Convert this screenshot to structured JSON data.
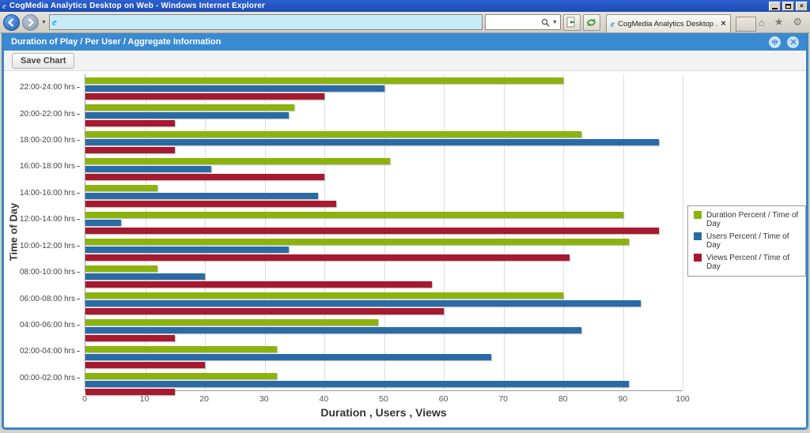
{
  "window": {
    "title": "CogMedia Analytics Desktop on Web - Windows Internet Explorer",
    "tab_title": "CogMedia Analytics Desktop ...",
    "tab_close": "×",
    "address_text": "",
    "search_placeholder": ""
  },
  "app": {
    "header_title": "Duration of Play / Per User / Aggregate Information",
    "save_button_label": "Save Chart"
  },
  "chart_data": {
    "type": "bar",
    "orientation": "horizontal",
    "xlabel": "Duration , Users , Views",
    "ylabel": "Time of Day",
    "xlim": [
      0,
      100
    ],
    "xticks": [
      0,
      10,
      20,
      30,
      40,
      50,
      60,
      70,
      80,
      90,
      100
    ],
    "grid": true,
    "legend_position": "right",
    "categories": [
      "22:00-24:00 hrs",
      "20:00-22:00 hrs",
      "18:00-20:00 hrs",
      "16:00-18:00 hrs",
      "14:00-16:00 hrs",
      "12:00-14:00 hrs",
      "10:00-12:00 hrs",
      "08:00-10:00 hrs",
      "06:00-08:00 hrs",
      "04:00-06:00 hrs",
      "02:00-04:00 hrs",
      "00:00-02:00 hrs"
    ],
    "series": [
      {
        "name": "Duration Percent / Time of Day",
        "color": "#8cb30d",
        "values": [
          80,
          35,
          83,
          51,
          12,
          90,
          91,
          12,
          80,
          49,
          32,
          32
        ]
      },
      {
        "name": "Users Percent / Time of Day",
        "color": "#2a6ba6",
        "values": [
          50,
          34,
          96,
          21,
          39,
          6,
          34,
          20,
          93,
          83,
          68,
          91
        ]
      },
      {
        "name": "Views Percent / Time of Day",
        "color": "#a6192e",
        "values": [
          40,
          15,
          15,
          40,
          42,
          96,
          81,
          58,
          60,
          15,
          20,
          15
        ]
      }
    ]
  }
}
